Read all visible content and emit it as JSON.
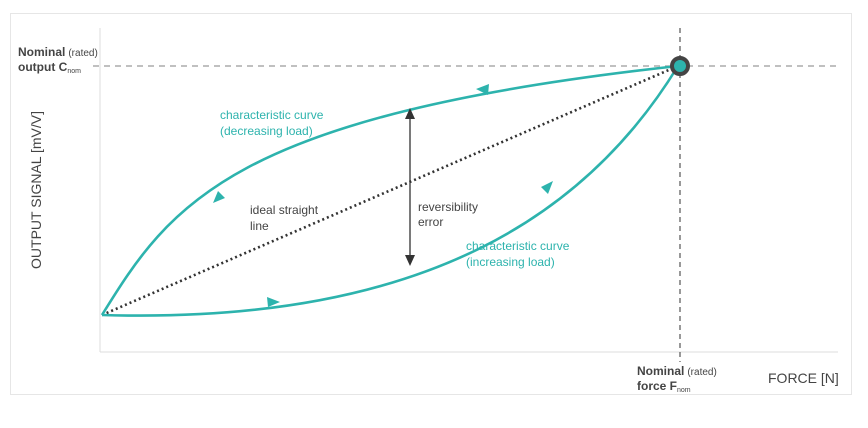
{
  "y_axis": {
    "label": "OUTPUT SIGNAL [mV/V]"
  },
  "x_axis": {
    "label": "FORCE [N]"
  },
  "nominal_output": {
    "word": "Nominal",
    "qualifier": "(rated)",
    "line2": "output C",
    "subscript": "nom"
  },
  "nominal_force": {
    "word": "Nominal",
    "qualifier": "(rated)",
    "line2": "force F",
    "subscript": "nom"
  },
  "curve_decreasing": {
    "line1": "characteristic curve",
    "line2": "(decreasing load)"
  },
  "curve_increasing": {
    "line1": "characteristic curve",
    "line2": "(increasing load)"
  },
  "ideal_line": {
    "line1": "ideal straight",
    "line2": "line"
  },
  "reversibility": {
    "line1": "reversibility",
    "line2": "error"
  },
  "colors": {
    "curve": "#2db3ad",
    "text": "#444444",
    "axis": "#dcdcdc",
    "dashed": "#9a9a9a",
    "point": "#555555"
  }
}
